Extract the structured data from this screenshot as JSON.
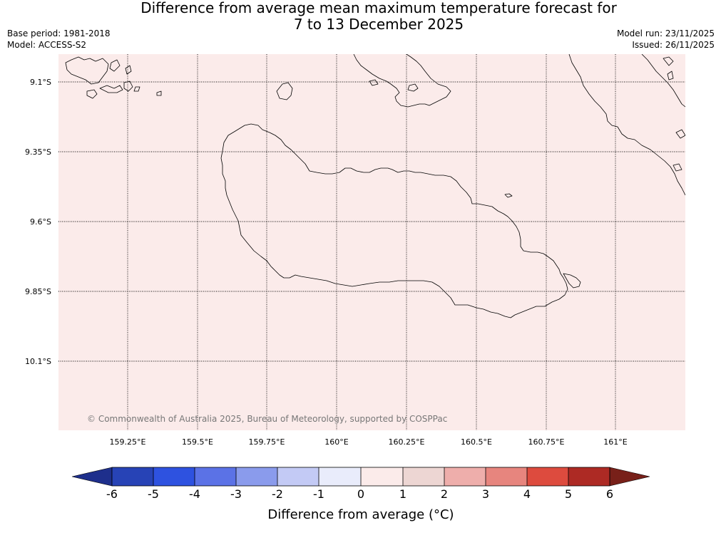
{
  "header": {
    "title_line1": "Difference from average mean maximum temperature forecast for",
    "title_line2": "7 to 13 December 2025",
    "base_period": "Base period: 1981-2018",
    "model": "Model: ACCESS-S2",
    "model_run": "Model run: 23/11/2025",
    "issued": "Issued: 26/11/2025"
  },
  "map": {
    "background_color": "#fbebea",
    "latitude_labels": [
      "9.1°S",
      "9.35°S",
      "9.6°S",
      "9.85°S",
      "10.1°S"
    ],
    "longitude_labels": [
      "159.25°E",
      "159.5°E",
      "159.75°E",
      "160°E",
      "160.25°E",
      "160.5°E",
      "160.75°E",
      "161°E"
    ],
    "copyright": "© Commonwealth of Australia 2025, Bureau of Meteorology, supported by COSPPac"
  },
  "colorbar": {
    "title": "Difference from average (°C)",
    "tick_labels": [
      "-6",
      "-5",
      "-4",
      "-3",
      "-2",
      "-1",
      "0",
      "1",
      "2",
      "3",
      "4",
      "5",
      "6"
    ],
    "colors": [
      "#1e2f8c",
      "#2743b6",
      "#2e52e0",
      "#5b72e6",
      "#8a9bec",
      "#c3caf5",
      "#e9ecfb",
      "#fbebea",
      "#edd6d3",
      "#eeaeab",
      "#e7857e",
      "#dd4b3e",
      "#ad2a24",
      "#782019"
    ]
  }
}
